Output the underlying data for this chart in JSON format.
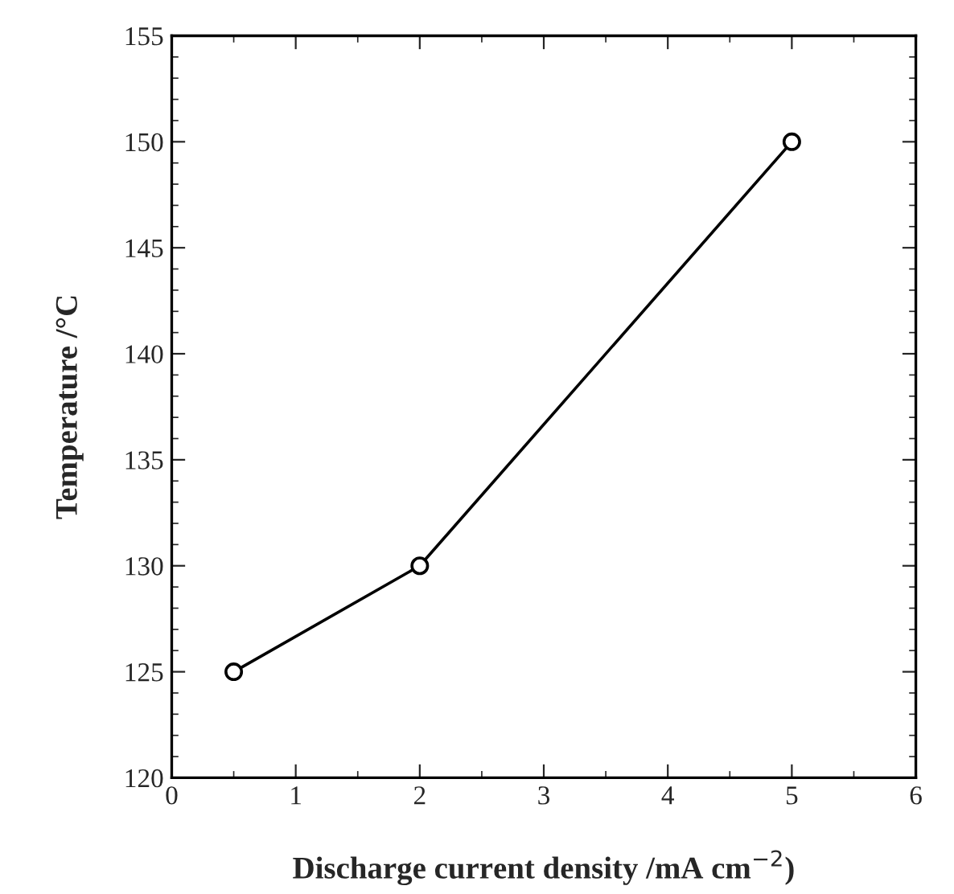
{
  "chart_data": {
    "type": "line",
    "xlabel": "Discharge current density /mA cm$^{−2}$)",
    "ylabel": "Temperature /°C",
    "x": [
      0.5,
      2,
      5
    ],
    "series": [
      {
        "color": "#000000",
        "values": [
          125,
          130,
          150
        ]
      }
    ],
    "xlim": [
      0,
      6
    ],
    "xticks": [
      0,
      1,
      2,
      3,
      4,
      5,
      6
    ],
    "ylim": [
      120,
      155
    ],
    "yticks": [
      120,
      125,
      130,
      135,
      140,
      145,
      150,
      155
    ],
    "marker": "circle",
    "line_style": "solid",
    "grid": false,
    "legend": false
  }
}
